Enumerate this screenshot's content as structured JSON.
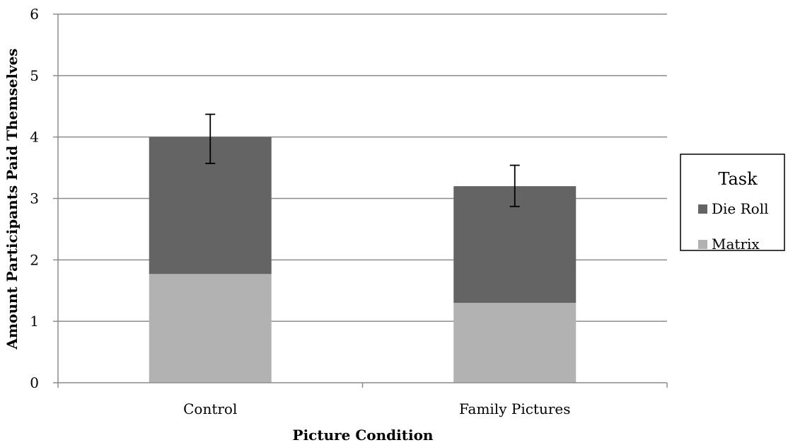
{
  "chart_data": {
    "type": "bar",
    "stacked": true,
    "categories": [
      "Control",
      "Family Pictures"
    ],
    "series": [
      {
        "name": "Matrix",
        "values": [
          1.77,
          1.3
        ],
        "color": "#b2b2b2"
      },
      {
        "name": "Die Roll",
        "values": [
          2.23,
          1.9
        ],
        "color": "#646464"
      }
    ],
    "error_bars": [
      {
        "center": 4.0,
        "low": 3.57,
        "high": 4.37
      },
      {
        "center": 3.2,
        "low": 2.87,
        "high": 3.54
      }
    ],
    "xlabel": "Picture Condition",
    "ylabel": "Amount Participants Paid Themselves",
    "ylim": [
      0,
      6
    ],
    "yticks": [
      0,
      1,
      2,
      3,
      4,
      5,
      6
    ],
    "grid": true,
    "legend": {
      "title": "Task",
      "position": "right",
      "entries": [
        "Die Roll",
        "Matrix"
      ]
    }
  }
}
